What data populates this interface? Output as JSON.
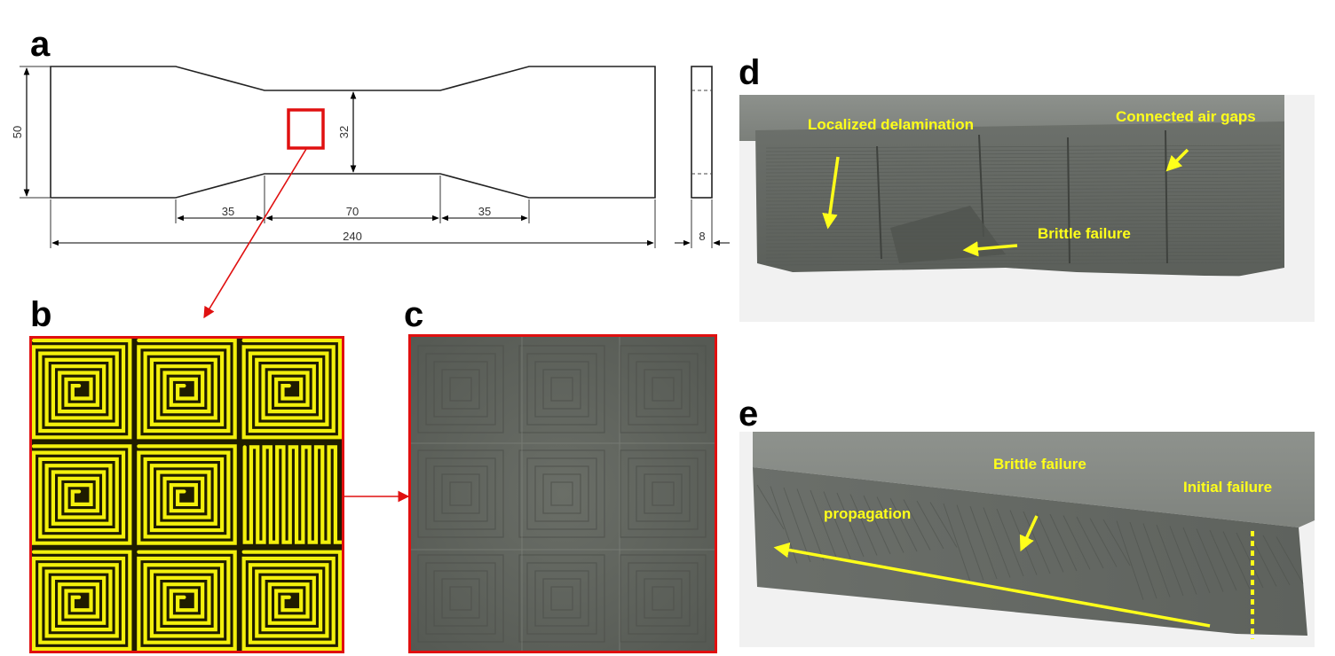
{
  "panels": {
    "a": {
      "letter": "a",
      "dimensions": {
        "height_total": "50",
        "height_gauge": "32",
        "len_taper_left": "35",
        "len_gauge": "70",
        "len_taper_right": "35",
        "len_total": "240",
        "thickness": "8"
      }
    },
    "b": {
      "letter": "b"
    },
    "c": {
      "letter": "c"
    },
    "d": {
      "letter": "d",
      "annotations": {
        "delamination": "Localized delamination",
        "air_gaps": "Connected air gaps",
        "brittle": "Brittle failure"
      }
    },
    "e": {
      "letter": "e",
      "annotations": {
        "brittle": "Brittle failure",
        "initial": "Initial failure",
        "propagation": "propagation"
      }
    }
  },
  "colors": {
    "highlight_red": "#e01010",
    "pattern_yellow": "#f3f00c",
    "annotation_yellow": "#ffff1a",
    "photo_gray": "#6f7370"
  }
}
